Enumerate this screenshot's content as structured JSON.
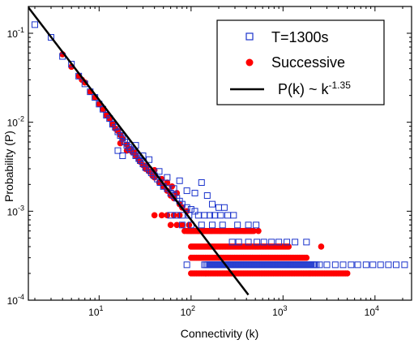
{
  "chart_data": {
    "type": "scatter",
    "xlabel": "Connectivity (k)",
    "ylabel": "Probability (P)",
    "xscale": "log",
    "yscale": "log",
    "xlim": [
      1.7,
      25000
    ],
    "ylim": [
      0.0001,
      0.2
    ],
    "x_ticks": [
      {
        "base": "10",
        "exp": "1",
        "value": 10
      },
      {
        "base": "10",
        "exp": "2",
        "value": 100
      },
      {
        "base": "10",
        "exp": "3",
        "value": 1000
      },
      {
        "base": "10",
        "exp": "4",
        "value": 10000
      }
    ],
    "y_ticks": [
      {
        "base": "10",
        "exp": "-1",
        "value": 0.1
      },
      {
        "base": "10",
        "exp": "-2",
        "value": 0.01
      },
      {
        "base": "10",
        "exp": "-3",
        "value": 0.001
      },
      {
        "base": "10",
        "exp": "-4",
        "value": 0.0001
      }
    ],
    "legend_position": "top-right",
    "grid": false,
    "series": [
      {
        "name": "T=1300s",
        "marker": "open-square",
        "color": "#1a33cc",
        "points": [
          [
            2,
            0.125
          ],
          [
            3,
            0.09
          ],
          [
            4,
            0.055
          ],
          [
            5,
            0.045
          ],
          [
            6,
            0.033
          ],
          [
            7,
            0.027
          ],
          [
            8,
            0.022
          ],
          [
            9,
            0.019
          ],
          [
            10,
            0.016
          ],
          [
            11,
            0.014
          ],
          [
            12,
            0.012
          ],
          [
            13,
            0.011
          ],
          [
            14,
            0.0095
          ],
          [
            15,
            0.0088
          ],
          [
            16,
            0.0078
          ],
          [
            17,
            0.0071
          ],
          [
            18,
            0.0066
          ],
          [
            19,
            0.006
          ],
          [
            20,
            0.0055
          ],
          [
            21,
            0.0052
          ],
          [
            22,
            0.0049
          ],
          [
            24,
            0.0046
          ],
          [
            25,
            0.0042
          ],
          [
            27,
            0.0039
          ],
          [
            28,
            0.0037
          ],
          [
            30,
            0.0034
          ],
          [
            32,
            0.0031
          ],
          [
            35,
            0.0029
          ],
          [
            37,
            0.0027
          ],
          [
            40,
            0.0025
          ],
          [
            43,
            0.0023
          ],
          [
            46,
            0.0021
          ],
          [
            50,
            0.0019
          ],
          [
            55,
            0.0018
          ],
          [
            60,
            0.0016
          ],
          [
            65,
            0.0015
          ],
          [
            70,
            0.0014
          ],
          [
            75,
            0.0013
          ],
          [
            80,
            0.0012
          ],
          [
            90,
            0.0011
          ],
          [
            100,
            0.00105
          ],
          [
            110,
            0.001
          ],
          [
            16,
            0.0048
          ],
          [
            18,
            0.0042
          ],
          [
            20,
            0.006
          ],
          [
            25,
            0.0055
          ],
          [
            30,
            0.0042
          ],
          [
            35,
            0.0038
          ],
          [
            45,
            0.0028
          ],
          [
            55,
            0.0024
          ],
          [
            65,
            0.0018
          ],
          [
            75,
            0.0022
          ],
          [
            90,
            0.0017
          ],
          [
            110,
            0.0016
          ],
          [
            130,
            0.0021
          ],
          [
            150,
            0.0015
          ],
          [
            170,
            0.0012
          ],
          [
            200,
            0.0011
          ],
          [
            230,
            0.0011
          ],
          [
            60,
            0.0009
          ],
          [
            70,
            0.0009
          ],
          [
            80,
            0.0009
          ],
          [
            95,
            0.0009
          ],
          [
            120,
            0.0009
          ],
          [
            140,
            0.0009
          ],
          [
            160,
            0.0009
          ],
          [
            180,
            0.0009
          ],
          [
            210,
            0.0009
          ],
          [
            250,
            0.0009
          ],
          [
            290,
            0.0009
          ],
          [
            80,
            0.0007
          ],
          [
            100,
            0.0007
          ],
          [
            130,
            0.0007
          ],
          [
            170,
            0.0007
          ],
          [
            220,
            0.0007
          ],
          [
            320,
            0.0007
          ],
          [
            420,
            0.0007
          ],
          [
            510,
            0.0007
          ],
          [
            280,
            0.00045
          ],
          [
            330,
            0.00045
          ],
          [
            420,
            0.00045
          ],
          [
            520,
            0.00045
          ],
          [
            620,
            0.00045
          ],
          [
            750,
            0.00045
          ],
          [
            900,
            0.00045
          ],
          [
            1100,
            0.00045
          ],
          [
            1350,
            0.00045
          ],
          [
            1800,
            0.00045
          ],
          [
            90,
            0.00025
          ],
          [
            2500,
            0.00025
          ],
          [
            3000,
            0.00025
          ],
          [
            3700,
            0.00025
          ],
          [
            4500,
            0.00025
          ],
          [
            5500,
            0.00025
          ],
          [
            6500,
            0.00025
          ],
          [
            8000,
            0.00025
          ],
          [
            9500,
            0.00025
          ],
          [
            11500,
            0.00025
          ],
          [
            14000,
            0.00025
          ],
          [
            17000,
            0.00025
          ],
          [
            21000,
            0.00025
          ]
        ],
        "dense_runs": [
          {
            "y": 0.00025,
            "x_from": 140,
            "x_to": 2300,
            "count": 70
          }
        ]
      },
      {
        "name": "Successive",
        "marker": "filled-circle",
        "color": "#ff0000",
        "points": [
          [
            4,
            0.058
          ],
          [
            5,
            0.042
          ],
          [
            6,
            0.033
          ],
          [
            6.5,
            0.03
          ],
          [
            7,
            0.028
          ],
          [
            8,
            0.022
          ],
          [
            9,
            0.019
          ],
          [
            10,
            0.016
          ],
          [
            11,
            0.014
          ],
          [
            12,
            0.012
          ],
          [
            13,
            0.011
          ],
          [
            14,
            0.0095
          ],
          [
            15,
            0.0085
          ],
          [
            16,
            0.008
          ],
          [
            17,
            0.0072
          ],
          [
            18,
            0.0065
          ],
          [
            20,
            0.0056
          ],
          [
            22,
            0.005
          ],
          [
            23,
            0.0046
          ],
          [
            25,
            0.0042
          ],
          [
            27,
            0.0038
          ],
          [
            30,
            0.0033
          ],
          [
            32,
            0.003
          ],
          [
            35,
            0.0028
          ],
          [
            38,
            0.0025
          ],
          [
            40,
            0.0024
          ],
          [
            45,
            0.0021
          ],
          [
            50,
            0.0019
          ],
          [
            55,
            0.0017
          ],
          [
            60,
            0.0015
          ],
          [
            65,
            0.0014
          ],
          [
            75,
            0.0012
          ],
          [
            80,
            0.0011
          ],
          [
            90,
            0.001
          ],
          [
            17,
            0.0058
          ],
          [
            20,
            0.0048
          ],
          [
            24,
            0.0046
          ],
          [
            28,
            0.0036
          ],
          [
            33,
            0.0032
          ],
          [
            40,
            0.0029
          ],
          [
            48,
            0.0023
          ],
          [
            55,
            0.0021
          ],
          [
            62,
            0.0019
          ],
          [
            70,
            0.0016
          ],
          [
            40,
            0.0009
          ],
          [
            48,
            0.0009
          ],
          [
            55,
            0.0009
          ],
          [
            65,
            0.0009
          ],
          [
            75,
            0.0009
          ],
          [
            60,
            0.0007
          ],
          [
            70,
            0.0007
          ],
          [
            80,
            0.0007
          ],
          [
            95,
            0.0007
          ],
          [
            85,
            0.0006
          ],
          [
            100,
            0.0006
          ],
          [
            120,
            0.0006
          ],
          [
            140,
            0.0006
          ],
          [
            165,
            0.0006
          ],
          [
            210,
            0.0006
          ],
          [
            260,
            0.0006
          ],
          [
            310,
            0.0006
          ],
          [
            380,
            0.0006
          ],
          [
            450,
            0.0006
          ],
          [
            540,
            0.0006
          ],
          [
            2600,
            0.0004
          ]
        ],
        "dense_runs": [
          {
            "y": 0.0006,
            "x_from": 90,
            "x_to": 480,
            "count": 45
          },
          {
            "y": 0.0004,
            "x_from": 100,
            "x_to": 1150,
            "count": 60
          },
          {
            "y": 0.0003,
            "x_from": 100,
            "x_to": 1800,
            "count": 65
          },
          {
            "y": 0.0002,
            "x_from": 100,
            "x_to": 5000,
            "count": 90
          }
        ]
      },
      {
        "name": "P(k) ~ k",
        "name_superscript": "-1.35",
        "type": "line",
        "color": "#000000",
        "exponent": -1.35,
        "x": [
          1.7,
          420
        ],
        "amplitude": 0.4
      }
    ]
  }
}
